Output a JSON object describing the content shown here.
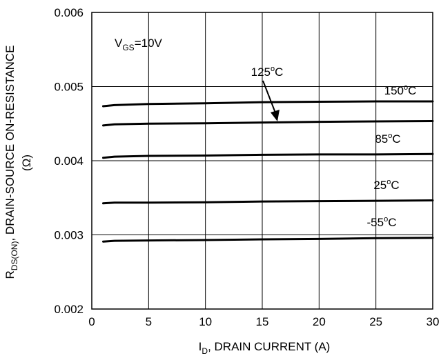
{
  "chart_data": {
    "type": "line",
    "xlabel_main": "I",
    "xlabel_sub": "D",
    "xlabel_rest": ", DRAIN CURRENT (A)",
    "ylabel_main": "R",
    "ylabel_sub": "DS(ON)",
    "ylabel_rest": ", DRAIN-SOURCE ON-RESISTANCE",
    "ylabel_unit": "(Ω)",
    "xlim": [
      0,
      30
    ],
    "ylim": [
      0.002,
      0.006
    ],
    "xticks": [
      "0",
      "5",
      "10",
      "15",
      "20",
      "25",
      "30"
    ],
    "yticks": [
      "0.002",
      "0.003",
      "0.004",
      "0.005",
      "0.006"
    ],
    "grid": true,
    "annotation": {
      "main": "V",
      "sub": "GS",
      "rest": "=10V"
    },
    "series": [
      {
        "name": "150°C",
        "x": [
          1,
          2,
          5,
          10,
          15,
          20,
          25,
          30
        ],
        "y": [
          0.004735,
          0.00475,
          0.004765,
          0.004775,
          0.00479,
          0.004795,
          0.0048,
          0.0048
        ]
      },
      {
        "name": "125°C",
        "x": [
          1,
          2,
          5,
          10,
          15,
          20,
          25,
          30
        ],
        "y": [
          0.004475,
          0.00449,
          0.0045,
          0.004505,
          0.004515,
          0.004525,
          0.00453,
          0.004535
        ]
      },
      {
        "name": "85°C",
        "x": [
          1,
          2,
          5,
          10,
          15,
          20,
          25,
          30
        ],
        "y": [
          0.00404,
          0.004055,
          0.004065,
          0.00407,
          0.00408,
          0.004085,
          0.004085,
          0.00409
        ]
      },
      {
        "name": "25°C",
        "x": [
          1,
          2,
          5,
          10,
          15,
          20,
          25,
          30
        ],
        "y": [
          0.003425,
          0.003435,
          0.003435,
          0.00344,
          0.00345,
          0.003455,
          0.00346,
          0.003465
        ]
      },
      {
        "name": "-55°C",
        "x": [
          1,
          2,
          5,
          10,
          15,
          20,
          25,
          30
        ],
        "y": [
          0.00291,
          0.00292,
          0.002925,
          0.00293,
          0.00294,
          0.002945,
          0.002955,
          0.00296
        ]
      }
    ],
    "series_labels": [
      {
        "series": "150°C",
        "num": "150",
        "deg": "o",
        "unit": "C"
      },
      {
        "series": "125°C",
        "num": "125",
        "deg": "o",
        "unit": "C"
      },
      {
        "series": "85°C",
        "num": "85",
        "deg": "o",
        "unit": "C"
      },
      {
        "series": "25°C",
        "num": "25",
        "deg": "o",
        "unit": "C"
      },
      {
        "series": "-55°C",
        "num": "-55",
        "deg": "o",
        "unit": "C"
      }
    ]
  }
}
